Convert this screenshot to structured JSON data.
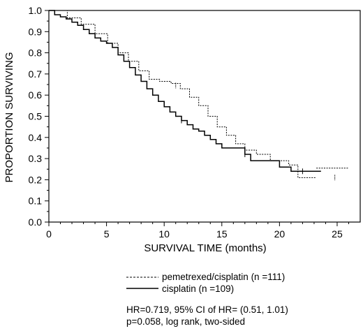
{
  "chart_data": {
    "type": "line",
    "title": "",
    "xlabel": "SURVIVAL TIME (months)",
    "ylabel": "PROPORTION SURVIVING",
    "xlim": [
      0,
      27
    ],
    "ylim": [
      0,
      1.0
    ],
    "x_ticks": [
      "0",
      "5",
      "10",
      "15",
      "20",
      "25"
    ],
    "y_ticks": [
      "0.0",
      "0.1",
      "0.2",
      "0.3",
      "0.4",
      "0.5",
      "0.6",
      "0.7",
      "0.8",
      "0.9",
      "1.0"
    ],
    "grid": false,
    "step": true,
    "series": [
      {
        "name": "pemetrexed/cisplatin (n =111)",
        "style": "dotted",
        "x": [
          0,
          0.3,
          0.6,
          1.0,
          1.3,
          1.6,
          2.0,
          2.4,
          2.8,
          3.2,
          3.6,
          4.0,
          4.4,
          4.8,
          5.1,
          5.4,
          5.7,
          6.0,
          6.3,
          6.6,
          6.9,
          7.2,
          7.5,
          7.8,
          8.1,
          8.4,
          8.7,
          9.0,
          9.3,
          9.6,
          9.9,
          10.2,
          10.6,
          11.0,
          11.4,
          11.8,
          12.2,
          12.6,
          13.0,
          13.4,
          13.8,
          14.2,
          14.6,
          15.0,
          15.4,
          15.8,
          16.2,
          16.6,
          17.0,
          17.4,
          18.0,
          18.6,
          19.2,
          20.0,
          20.8,
          21.6,
          22.4,
          23.2,
          24.0,
          24.8,
          26.0
        ],
        "y": [
          1.0,
          0.99,
          0.985,
          0.98,
          0.975,
          0.965,
          0.955,
          0.945,
          0.935,
          0.92,
          0.905,
          0.89,
          0.875,
          0.86,
          0.845,
          0.83,
          0.815,
          0.8,
          0.785,
          0.775,
          0.76,
          0.745,
          0.73,
          0.715,
          0.7,
          0.685,
          0.675,
          0.67,
          0.67,
          0.665,
          0.66,
          0.655,
          0.655,
          0.645,
          0.63,
          0.61,
          0.59,
          0.57,
          0.55,
          0.525,
          0.5,
          0.48,
          0.45,
          0.43,
          0.41,
          0.39,
          0.37,
          0.35,
          0.34,
          0.33,
          0.32,
          0.3,
          0.29,
          0.28,
          0.27,
          0.26,
          0.21,
          0.21,
          0.21,
          0.21,
          0.255
        ],
        "segments": [
          {
            "x": [
              0,
              1.6,
              2.8,
              4.0,
              5.1,
              6.0,
              6.9,
              7.8,
              8.7,
              9.6,
              10.6,
              11.4,
              12.2,
              13.0,
              13.8,
              14.6,
              15.4,
              16.2,
              17.0,
              18.0,
              19.2,
              20.8,
              21.6,
              23.2
            ],
            "y": [
              1.0,
              0.965,
              0.935,
              0.89,
              0.845,
              0.8,
              0.76,
              0.715,
              0.675,
              0.665,
              0.655,
              0.63,
              0.59,
              0.55,
              0.5,
              0.45,
              0.41,
              0.37,
              0.34,
              0.32,
              0.29,
              0.27,
              0.21,
              0.21
            ]
          },
          {
            "x": [
              23.2,
              26.0
            ],
            "y": [
              0.255,
              0.255
            ]
          }
        ]
      },
      {
        "name": "cisplatin (n =109)",
        "style": "solid",
        "x": [
          0,
          0.5,
          1.0,
          1.5,
          2.0,
          2.5,
          3.0,
          3.5,
          4.0,
          4.5,
          5.0,
          5.5,
          6.0,
          6.5,
          7.0,
          7.5,
          8.0,
          8.5,
          9.0,
          9.5,
          10.0,
          10.5,
          11.0,
          11.5,
          12.0,
          12.5,
          13.0,
          13.5,
          14.0,
          14.5,
          15.0,
          15.5,
          16.0,
          16.5,
          17.0,
          17.5,
          18.5,
          19.5,
          20.0,
          21.0,
          21.5,
          22.0,
          23.6
        ],
        "y": [
          1.0,
          0.98,
          0.97,
          0.96,
          0.945,
          0.93,
          0.91,
          0.89,
          0.87,
          0.855,
          0.845,
          0.825,
          0.79,
          0.76,
          0.73,
          0.695,
          0.665,
          0.63,
          0.6,
          0.57,
          0.545,
          0.52,
          0.5,
          0.48,
          0.46,
          0.44,
          0.43,
          0.41,
          0.39,
          0.37,
          0.35,
          0.35,
          0.35,
          0.35,
          0.32,
          0.29,
          0.29,
          0.29,
          0.26,
          0.24,
          0.24,
          0.24,
          0.24
        ],
        "segments": []
      }
    ],
    "legend_position": "bottom",
    "annotations": [
      "HR=0.719, 95% CI of HR= (0.51, 1.01)",
      "p=0.058, log rank, two-sided"
    ]
  },
  "legend": {
    "item1_label": "pemetrexed/cisplatin (n =111)",
    "item2_label": "cisplatin (n =109)"
  }
}
